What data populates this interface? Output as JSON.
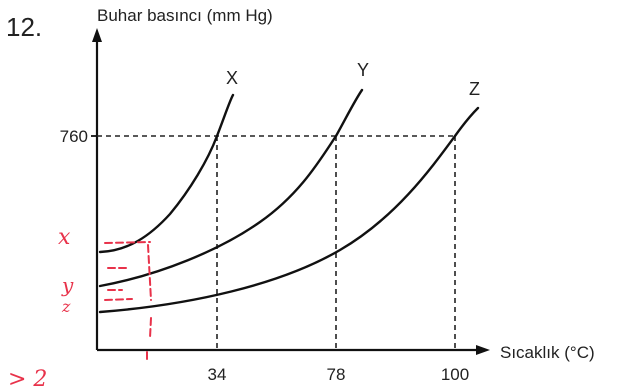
{
  "question_number": "12.",
  "chart_data": {
    "type": "line",
    "ylabel": "Buhar basıncı (mm Hg)",
    "xlabel": "Sıcaklık (°C)",
    "x_ticks": [
      "34",
      "78",
      "100"
    ],
    "y_ticks": [
      "760"
    ],
    "reference_y": 760,
    "series": [
      {
        "name": "X",
        "boiling_point": 34,
        "color": "#111111"
      },
      {
        "name": "Y",
        "boiling_point": 78,
        "color": "#111111"
      },
      {
        "name": "Z",
        "boiling_point": 100,
        "color": "#111111"
      }
    ],
    "grid": false
  },
  "annotations": {
    "labels": [
      "x",
      "y",
      "z"
    ],
    "margin_note": "> 2",
    "color": "#e8324a"
  }
}
